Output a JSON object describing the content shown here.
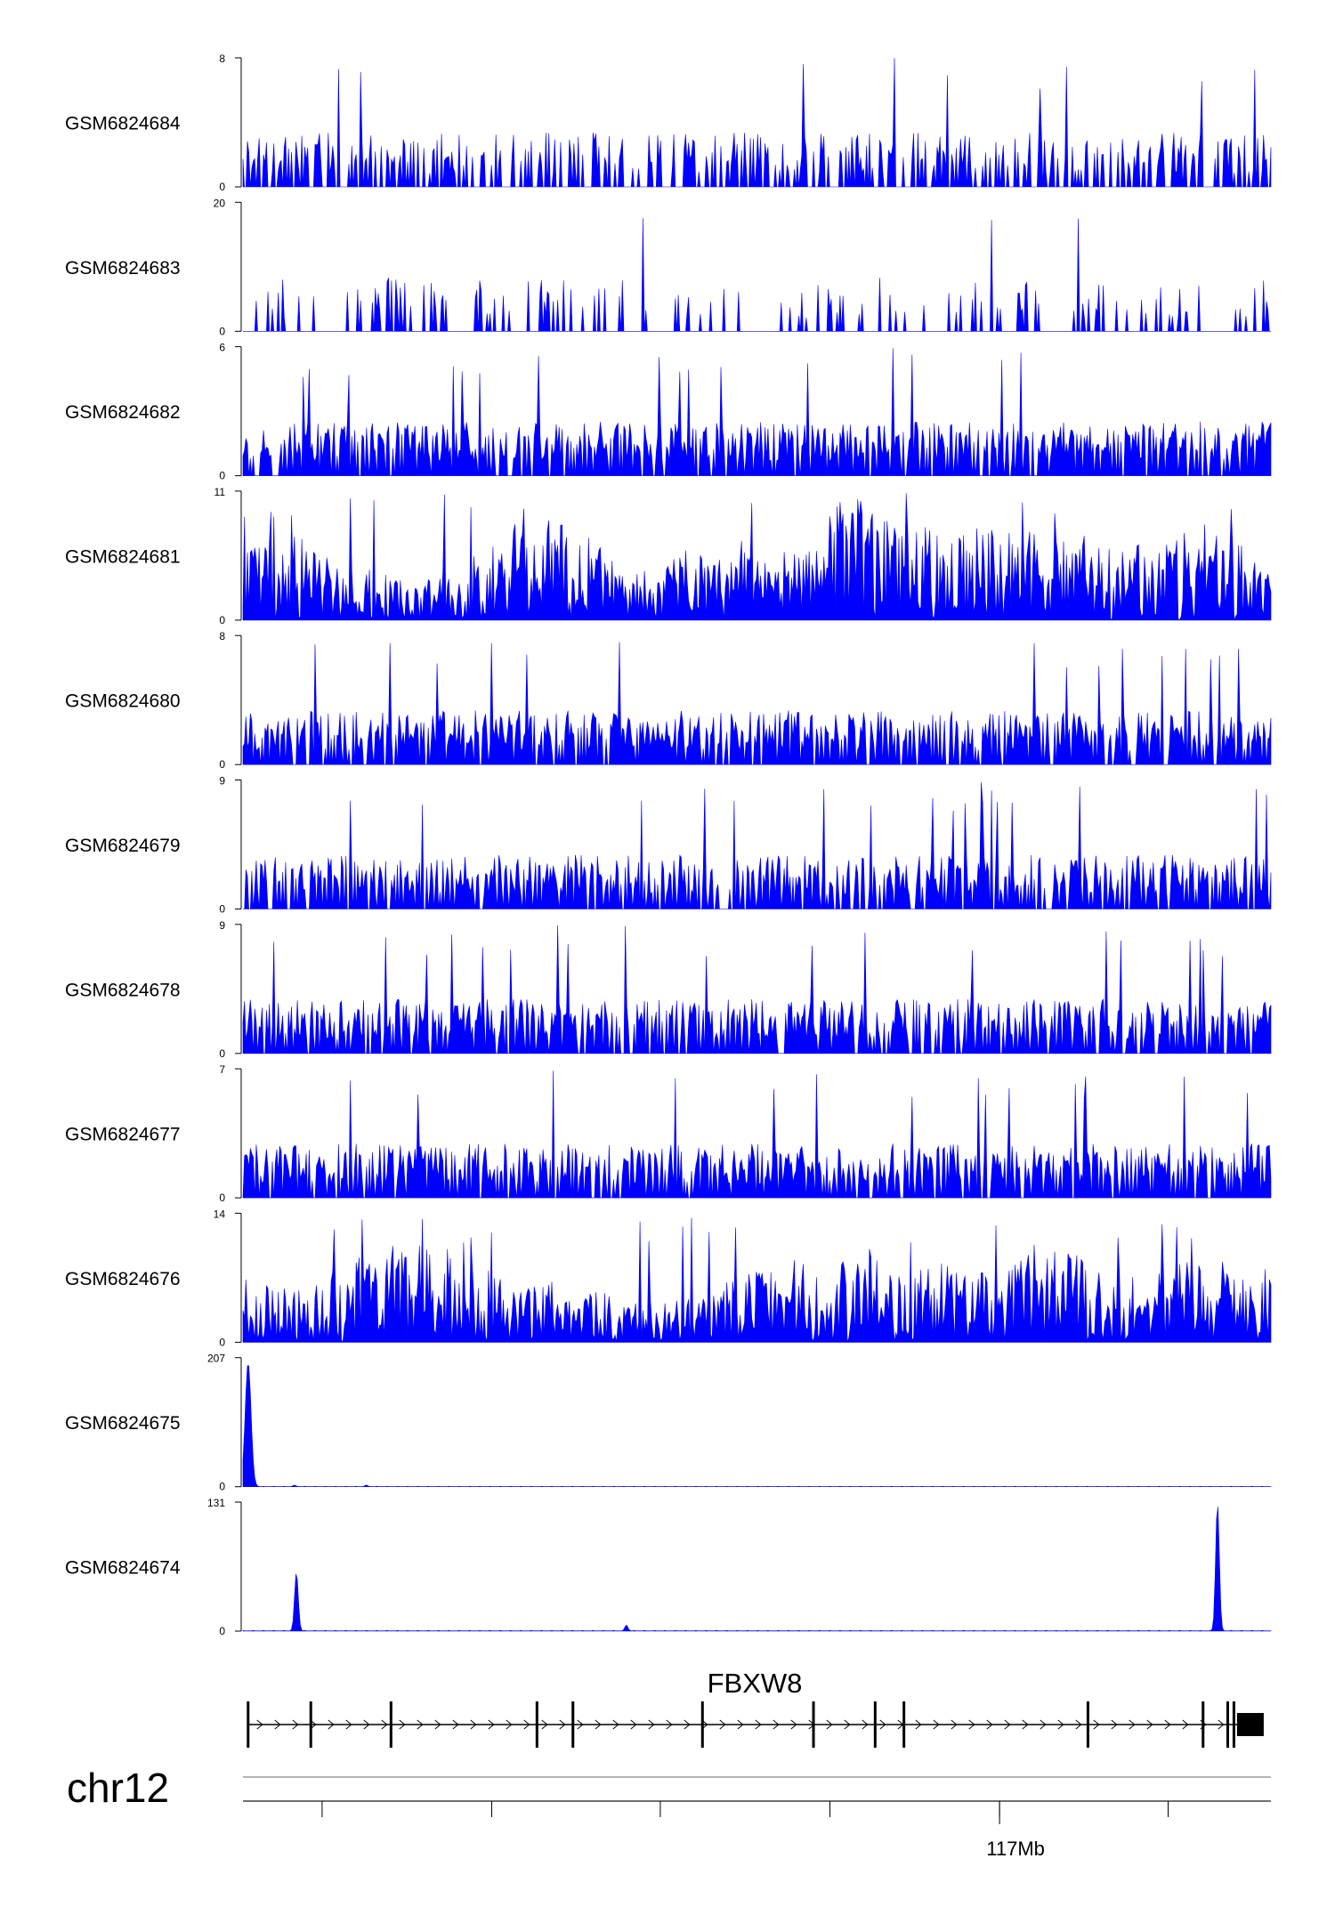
{
  "chart_data": {
    "type": "area",
    "title": "",
    "genome_browser": true,
    "color": "#0000ff",
    "ylim_min": 0,
    "tracks": [
      {
        "name": "GSM6824684",
        "ymax": 8,
        "ylabel_top": "8",
        "ylabel_bottom": "0",
        "profile": "sparse_spikes",
        "seed": 11
      },
      {
        "name": "GSM6824683",
        "ymax": 20,
        "ylabel_top": "20",
        "ylabel_bottom": "0",
        "profile": "sparse_triangles",
        "seed": 23
      },
      {
        "name": "GSM6824682",
        "ymax": 6,
        "ylabel_top": "6",
        "ylabel_bottom": "0",
        "profile": "dense_spikes",
        "seed": 37
      },
      {
        "name": "GSM6824681",
        "ymax": 11,
        "ylabel_top": "11",
        "ylabel_bottom": "0",
        "profile": "dense_filled",
        "seed": 41
      },
      {
        "name": "GSM6824680",
        "ymax": 8,
        "ylabel_top": "8",
        "ylabel_bottom": "0",
        "profile": "dense_spikes",
        "seed": 53
      },
      {
        "name": "GSM6824679",
        "ymax": 9,
        "ylabel_top": "9",
        "ylabel_bottom": "0",
        "profile": "dense_spikes",
        "seed": 61
      },
      {
        "name": "GSM6824678",
        "ymax": 9,
        "ylabel_top": "9",
        "ylabel_bottom": "0",
        "profile": "dense_spikes",
        "seed": 71
      },
      {
        "name": "GSM6824677",
        "ymax": 7,
        "ylabel_top": "7",
        "ylabel_bottom": "0",
        "profile": "dense_spikes",
        "seed": 83
      },
      {
        "name": "GSM6824676",
        "ymax": 14,
        "ylabel_top": "14",
        "ylabel_bottom": "0",
        "profile": "dense_filled",
        "seed": 97
      },
      {
        "name": "GSM6824675",
        "ymax": 207,
        "ylabel_top": "207",
        "ylabel_bottom": "0",
        "profile": "peaks",
        "peaks": [
          {
            "pos": 0.005,
            "height": 200,
            "width": 0.004
          },
          {
            "pos": 0.05,
            "height": 2,
            "width": 0.002
          },
          {
            "pos": 0.12,
            "height": 2,
            "width": 0.002
          }
        ]
      },
      {
        "name": "GSM6824674",
        "ymax": 131,
        "ylabel_top": "131",
        "ylabel_bottom": "0",
        "profile": "peaks",
        "peaks": [
          {
            "pos": 0.052,
            "height": 60,
            "width": 0.0025
          },
          {
            "pos": 0.373,
            "height": 6,
            "width": 0.002
          },
          {
            "pos": 0.948,
            "height": 131,
            "width": 0.0025
          }
        ]
      }
    ],
    "gene": {
      "name": "FBXW8",
      "strand": "+",
      "exon_positions": [
        0.005,
        0.066,
        0.144,
        0.286,
        0.321,
        0.447,
        0.555,
        0.615,
        0.643,
        0.822,
        0.934,
        0.958,
        0.964
      ],
      "utr_block": [
        0.967,
        0.993
      ]
    },
    "chromosome": "chr12",
    "axis": {
      "tick_positions": [
        0.077,
        0.242,
        0.406,
        0.571,
        0.736,
        0.9
      ],
      "labeled_tick": {
        "pos": 0.736,
        "label": "117Mb"
      }
    }
  }
}
